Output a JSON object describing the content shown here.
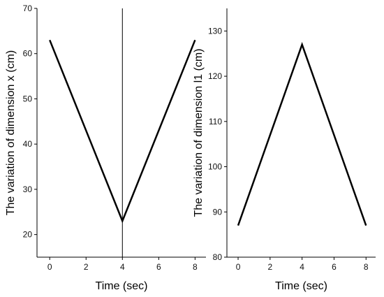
{
  "chart_data": [
    {
      "type": "line",
      "xlabel": "Time (sec)",
      "ylabel": "The variation of dimension  x (cm)",
      "xlim": [
        -0.7,
        8.6
      ],
      "ylim": [
        15,
        70
      ],
      "xticks": [
        0,
        2,
        4,
        6,
        8
      ],
      "yticks": [
        20,
        30,
        40,
        50,
        60,
        70
      ],
      "grid": false,
      "vertical_line_x": 4,
      "series": [
        {
          "x": [
            0,
            4,
            8
          ],
          "y": [
            63,
            23,
            63
          ]
        }
      ]
    },
    {
      "type": "line",
      "xlabel": "Time (sec)",
      "ylabel": "The variation of dimension  l1 (cm)",
      "xlim": [
        -0.7,
        8.6
      ],
      "ylim": [
        80,
        135
      ],
      "xticks": [
        0,
        2,
        4,
        6,
        8
      ],
      "yticks": [
        80,
        90,
        100,
        110,
        120,
        130
      ],
      "grid": false,
      "series": [
        {
          "x": [
            0,
            4,
            8
          ],
          "y": [
            87,
            127,
            87
          ]
        }
      ]
    }
  ]
}
